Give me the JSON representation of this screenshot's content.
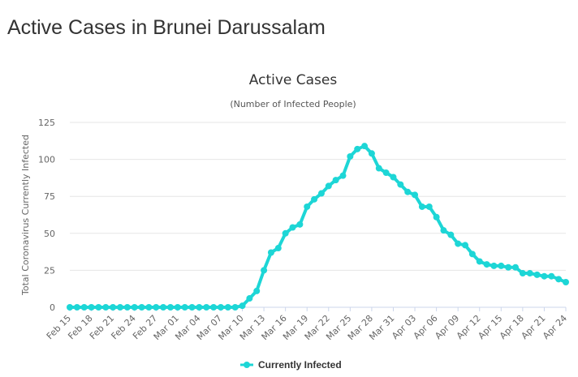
{
  "page": {
    "heading": "Active Cases in Brunei Darussalam"
  },
  "colors": {
    "series": "#1dd6d6",
    "grid": "#e6e6e6",
    "axis": "#ccd6eb"
  },
  "chart_data": {
    "type": "line",
    "title": "Active Cases",
    "subtitle": "(Number of Infected People)",
    "ylabel": "Total Coronavirus Currently Infected",
    "xlabel": "",
    "ylim": [
      0,
      125
    ],
    "yticks": [
      0,
      25,
      50,
      75,
      100,
      125
    ],
    "grid": true,
    "legend_position": "bottom-center",
    "x_tick_labels": [
      "Feb 15",
      "Feb 18",
      "Feb 21",
      "Feb 24",
      "Feb 27",
      "Mar 01",
      "Mar 04",
      "Mar 07",
      "Mar 10",
      "Mar 13",
      "Mar 16",
      "Mar 19",
      "Mar 22",
      "Mar 25",
      "Mar 28",
      "Mar 31",
      "Apr 03",
      "Apr 06",
      "Apr 09",
      "Apr 12",
      "Apr 15",
      "Apr 18",
      "Apr 21",
      "Apr 24"
    ],
    "x": [
      "Feb 15",
      "Feb 16",
      "Feb 17",
      "Feb 18",
      "Feb 19",
      "Feb 20",
      "Feb 21",
      "Feb 22",
      "Feb 23",
      "Feb 24",
      "Feb 25",
      "Feb 26",
      "Feb 27",
      "Feb 28",
      "Feb 29",
      "Mar 01",
      "Mar 02",
      "Mar 03",
      "Mar 04",
      "Mar 05",
      "Mar 06",
      "Mar 07",
      "Mar 08",
      "Mar 09",
      "Mar 10",
      "Mar 11",
      "Mar 12",
      "Mar 13",
      "Mar 14",
      "Mar 15",
      "Mar 16",
      "Mar 17",
      "Mar 18",
      "Mar 19",
      "Mar 20",
      "Mar 21",
      "Mar 22",
      "Mar 23",
      "Mar 24",
      "Mar 25",
      "Mar 26",
      "Mar 27",
      "Mar 28",
      "Mar 29",
      "Mar 30",
      "Mar 31",
      "Apr 01",
      "Apr 02",
      "Apr 03",
      "Apr 04",
      "Apr 05",
      "Apr 06",
      "Apr 07",
      "Apr 08",
      "Apr 09",
      "Apr 10",
      "Apr 11",
      "Apr 12",
      "Apr 13",
      "Apr 14",
      "Apr 15",
      "Apr 16",
      "Apr 17",
      "Apr 18",
      "Apr 19",
      "Apr 20",
      "Apr 21",
      "Apr 22",
      "Apr 23",
      "Apr 24"
    ],
    "series": [
      {
        "name": "Currently Infected",
        "values": [
          0,
          0,
          0,
          0,
          0,
          0,
          0,
          0,
          0,
          0,
          0,
          0,
          0,
          0,
          0,
          0,
          0,
          0,
          0,
          0,
          0,
          0,
          0,
          0,
          1,
          6,
          11,
          25,
          37,
          40,
          50,
          54,
          56,
          68,
          73,
          77,
          82,
          86,
          89,
          102,
          107,
          109,
          104,
          94,
          91,
          88,
          83,
          78,
          76,
          68,
          68,
          61,
          52,
          49,
          43,
          42,
          36,
          31,
          29,
          28,
          28,
          27,
          27,
          23,
          23,
          22,
          21,
          21,
          19,
          17
        ]
      }
    ]
  }
}
